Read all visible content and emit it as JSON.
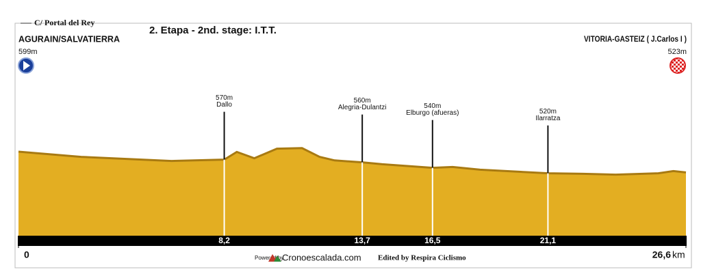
{
  "chart_data": {
    "type": "profile",
    "title": "2. Etapa - 2nd. stage: I.T.T.",
    "start": {
      "street": "C/ Portal del Rey",
      "name": "AGURAIN/SALVATIERRA",
      "altitude": {
        "value": 599,
        "label": "599m"
      }
    },
    "finish": {
      "name": "VITORIA-GASTEIZ ( J.Carlos I )",
      "altitude": {
        "value": 523,
        "label": "523m"
      }
    },
    "xlim": [
      0,
      26.6
    ],
    "xticks": [
      0,
      {
        "value": 26.6,
        "label": "26,6"
      }
    ],
    "x_unit": "km",
    "color": "#e3ae22",
    "profile": {
      "x": [
        0,
        2.5,
        6.1,
        7.4,
        8.2,
        8.7,
        9.4,
        10.3,
        11.3,
        12.0,
        12.6,
        13.7,
        14.5,
        16.5,
        17.3,
        18.4,
        21.1,
        22.5,
        23.8,
        25.5,
        26.1,
        26.6
      ],
      "values": [
        599,
        580,
        565,
        568,
        570,
        598,
        575,
        610,
        612,
        580,
        567,
        560,
        553,
        540,
        543,
        533,
        520,
        518,
        515,
        520,
        528,
        523
      ]
    },
    "waypoints": [
      {
        "name": "Dallo",
        "altitude": {
          "value": 570,
          "label": "570m"
        },
        "km": {
          "value": 8.2,
          "label": "8,2"
        }
      },
      {
        "name": "Alegria-Dulantzi",
        "altitude": {
          "value": 560,
          "label": "560m"
        },
        "km": {
          "value": 13.7,
          "label": "13,7"
        }
      },
      {
        "name": "Elburgo (afueras)",
        "altitude": {
          "value": 540,
          "label": "540m"
        },
        "km": {
          "value": 16.5,
          "label": "16,5"
        }
      },
      {
        "name": "Ilarratza",
        "altitude": {
          "value": 520,
          "label": "520m"
        },
        "km": {
          "value": 21.1,
          "label": "21,1"
        }
      }
    ],
    "credits": {
      "powered_by": "Powered by",
      "site": "Cronoescalada.com",
      "edited": "Edited by Respira Ciclismo"
    }
  }
}
